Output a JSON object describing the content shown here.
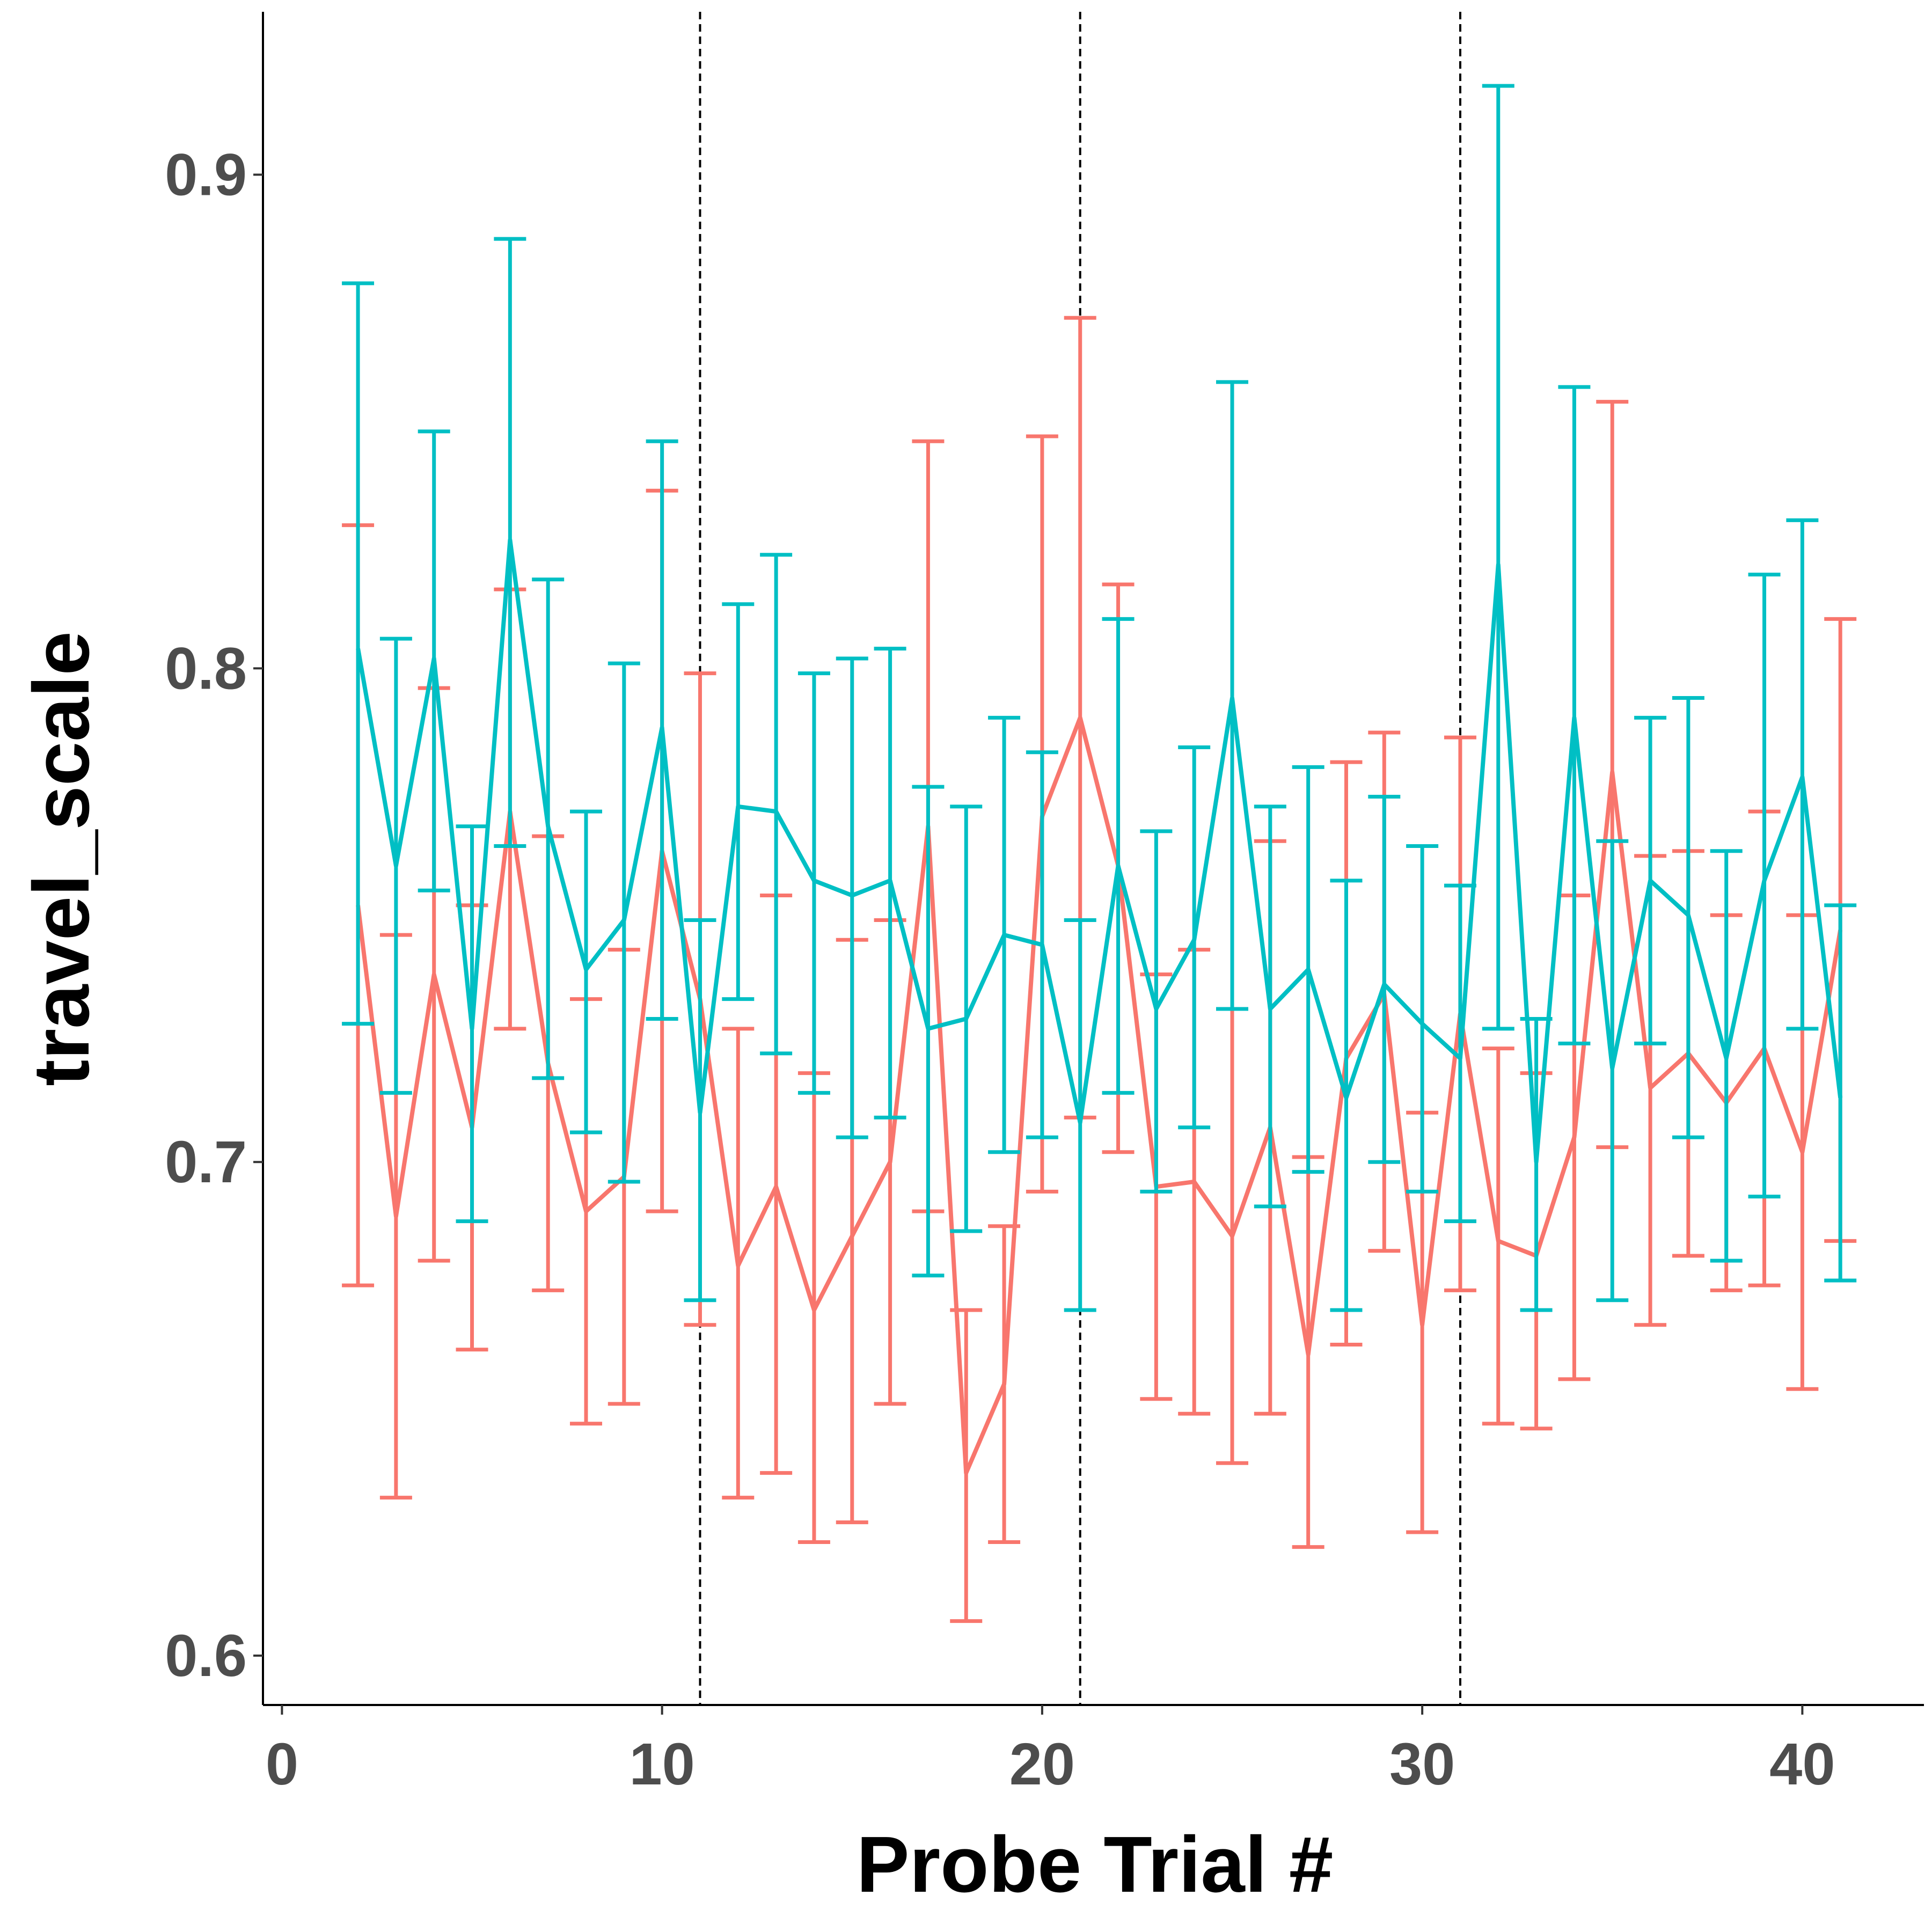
{
  "chart_data": {
    "type": "line",
    "title": "",
    "xlabel": "Probe Trial #",
    "ylabel": "travel_scale",
    "xlim": [
      -0.5,
      43.2
    ],
    "ylim": [
      0.59,
      0.933
    ],
    "xticks": [
      0,
      10,
      20,
      30,
      40
    ],
    "xtick_labels": [
      "0",
      "10",
      "20",
      "30",
      "40"
    ],
    "yticks": [
      0.6,
      0.7,
      0.8,
      0.9
    ],
    "ytick_labels": [
      "0.6",
      "0.7",
      "0.8",
      "0.9"
    ],
    "vlines": [
      11,
      21,
      31
    ],
    "grid": false,
    "legend": "none",
    "x": [
      2,
      3,
      4,
      5,
      6,
      7,
      8,
      9,
      10,
      11,
      12,
      13,
      14,
      15,
      16,
      17,
      18,
      19,
      20,
      21,
      22,
      23,
      24,
      25,
      26,
      27,
      28,
      29,
      30,
      31,
      32,
      33,
      34,
      35,
      36,
      37,
      38,
      39,
      40,
      41
    ],
    "series": [
      {
        "color": "#f8766d",
        "values": [
          0.752,
          0.689,
          0.738,
          0.707,
          0.771,
          0.72,
          0.69,
          0.697,
          0.763,
          0.733,
          0.679,
          0.695,
          0.67,
          0.685,
          0.7,
          0.768,
          0.637,
          0.655,
          0.77,
          0.79,
          0.76,
          0.695,
          0.696,
          0.685,
          0.707,
          0.661,
          0.721,
          0.734,
          0.667,
          0.73,
          0.684,
          0.681,
          0.705,
          0.779,
          0.715,
          0.722,
          0.712,
          0.723,
          0.702,
          0.747
        ],
        "lower": [
          0.675,
          0.632,
          0.68,
          0.662,
          0.727,
          0.674,
          0.647,
          0.651,
          0.69,
          0.667,
          0.632,
          0.637,
          0.623,
          0.627,
          0.651,
          0.69,
          0.607,
          0.623,
          0.694,
          0.709,
          0.702,
          0.652,
          0.649,
          0.639,
          0.649,
          0.622,
          0.663,
          0.682,
          0.625,
          0.674,
          0.647,
          0.646,
          0.656,
          0.703,
          0.667,
          0.681,
          0.674,
          0.675,
          0.654,
          0.684
        ],
        "upper": [
          0.829,
          0.746,
          0.796,
          0.752,
          0.816,
          0.766,
          0.733,
          0.743,
          0.836,
          0.799,
          0.727,
          0.754,
          0.718,
          0.745,
          0.749,
          0.846,
          0.67,
          0.687,
          0.847,
          0.871,
          0.817,
          0.738,
          0.743,
          0.731,
          0.765,
          0.701,
          0.781,
          0.787,
          0.71,
          0.786,
          0.723,
          0.718,
          0.754,
          0.854,
          0.762,
          0.763,
          0.75,
          0.771,
          0.75,
          0.81
        ]
      },
      {
        "color": "#00bfc4",
        "values": [
          0.804,
          0.76,
          0.802,
          0.727,
          0.826,
          0.768,
          0.739,
          0.749,
          0.788,
          0.71,
          0.772,
          0.771,
          0.757,
          0.754,
          0.757,
          0.727,
          0.729,
          0.746,
          0.744,
          0.708,
          0.76,
          0.731,
          0.745,
          0.794,
          0.731,
          0.739,
          0.713,
          0.736,
          0.728,
          0.721,
          0.821,
          0.7,
          0.79,
          0.719,
          0.757,
          0.75,
          0.721,
          0.757,
          0.778,
          0.713
        ],
        "lower": [
          0.728,
          0.714,
          0.755,
          0.688,
          0.764,
          0.717,
          0.706,
          0.696,
          0.729,
          0.672,
          0.733,
          0.722,
          0.714,
          0.705,
          0.709,
          0.677,
          0.686,
          0.702,
          0.705,
          0.67,
          0.714,
          0.694,
          0.707,
          0.731,
          0.691,
          0.698,
          0.67,
          0.7,
          0.694,
          0.688,
          0.727,
          0.67,
          0.724,
          0.672,
          0.724,
          0.705,
          0.68,
          0.693,
          0.727,
          0.676
        ],
        "upper": [
          0.878,
          0.806,
          0.848,
          0.768,
          0.887,
          0.818,
          0.771,
          0.801,
          0.846,
          0.749,
          0.813,
          0.823,
          0.799,
          0.802,
          0.804,
          0.776,
          0.772,
          0.79,
          0.783,
          0.749,
          0.81,
          0.767,
          0.784,
          0.858,
          0.772,
          0.78,
          0.757,
          0.774,
          0.764,
          0.756,
          0.918,
          0.729,
          0.857,
          0.765,
          0.79,
          0.794,
          0.763,
          0.819,
          0.83,
          0.752
        ]
      }
    ]
  }
}
